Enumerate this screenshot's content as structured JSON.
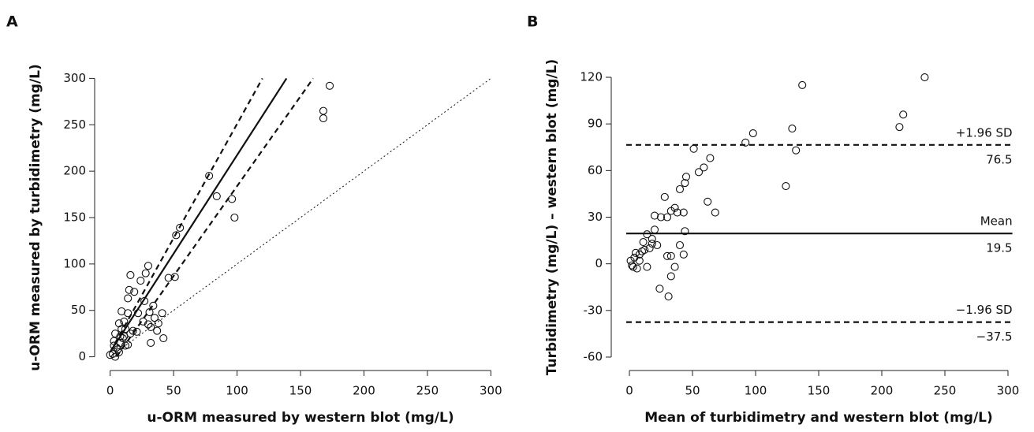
{
  "chart_data": [
    {
      "type": "scatter",
      "panel_label": "A",
      "x_label": "u-ORM measured by western blot (mg/L)",
      "y_label": "u-ORM measured by turbidimetry (mg/L)",
      "xlim": [
        -6,
        306
      ],
      "ylim": [
        -8,
        308
      ],
      "xticks": [
        0,
        50,
        100,
        150,
        200,
        250,
        300
      ],
      "yticks": [
        0,
        50,
        100,
        150,
        200,
        250,
        300
      ],
      "color": "#111111",
      "x": [
        173,
        168,
        168,
        78,
        84,
        96,
        98,
        55,
        52,
        51,
        46,
        30,
        28,
        16,
        24,
        19,
        15,
        14,
        27,
        34,
        31,
        22,
        14,
        9,
        7,
        11,
        12,
        18,
        16,
        21,
        30,
        32,
        38,
        37,
        41,
        42,
        32,
        14,
        10,
        8,
        4,
        3,
        5,
        7,
        2,
        0,
        4,
        12,
        9,
        3,
        6,
        11,
        8,
        35,
        26
      ],
      "y": [
        292,
        265,
        257,
        195,
        173,
        170,
        150,
        139,
        131,
        86,
        85,
        98,
        90,
        88,
        82,
        70,
        72,
        63,
        60,
        55,
        48,
        47,
        47,
        49,
        36,
        38,
        30,
        28,
        25,
        27,
        35,
        32,
        36,
        28,
        47,
        20,
        15,
        13,
        20,
        22,
        25,
        17,
        10,
        5,
        3,
        2,
        0,
        12,
        30,
        12,
        8,
        22,
        15,
        42,
        38
      ],
      "lines": [
        {
          "style": "solid",
          "x": [
            0,
            139
          ],
          "y": [
            5,
            300
          ]
        },
        {
          "style": "dashed",
          "x": [
            0,
            120
          ],
          "y": [
            5,
            300
          ]
        },
        {
          "style": "dashed",
          "x": [
            5,
            160
          ],
          "y": [
            0,
            300
          ]
        },
        {
          "style": "dotted",
          "x": [
            0,
            300
          ],
          "y": [
            0,
            300
          ]
        }
      ]
    },
    {
      "type": "scatter",
      "panel_label": "B",
      "x_label": "Mean of turbidimetry and western blot (mg/L)",
      "y_label": "Turbidimetry (mg/L) – western blot (mg/L)",
      "xlim": [
        -6,
        306
      ],
      "ylim": [
        -66,
        126
      ],
      "xticks": [
        0,
        50,
        100,
        150,
        200,
        250,
        300
      ],
      "yticks": [
        120,
        90,
        60,
        30,
        0,
        -30,
        -60
      ],
      "color": "#111111",
      "x": [
        234,
        137,
        217,
        214,
        129,
        98,
        92,
        132,
        51,
        64,
        59,
        55,
        45,
        44,
        40,
        124,
        62,
        68,
        43,
        28,
        36,
        33,
        38,
        30,
        25,
        20,
        20,
        18,
        22,
        14,
        11,
        16,
        12,
        8,
        4,
        1,
        2,
        3,
        6,
        8,
        14,
        40,
        43,
        44,
        30,
        33,
        36,
        33,
        24,
        31,
        10,
        5,
        18
      ],
      "y": [
        120,
        115,
        96,
        88,
        87,
        84,
        78,
        73,
        74,
        68,
        62,
        59,
        56,
        52,
        48,
        50,
        40,
        33,
        33,
        43,
        36,
        34,
        33,
        30,
        30,
        31,
        22,
        16,
        12,
        19,
        14,
        10,
        9,
        6,
        4,
        2,
        -1,
        -2,
        -3,
        2,
        -2,
        12,
        6,
        21,
        5,
        5,
        -2,
        -8,
        -16,
        -21,
        8,
        7,
        13
      ],
      "hlines": [
        {
          "name": "+1.96 SD",
          "value": 76.5,
          "value_label": "76.5",
          "style": "dashed"
        },
        {
          "name": "Mean",
          "value": 19.5,
          "value_label": "19.5",
          "style": "solid"
        },
        {
          "name": "−1.96 SD",
          "value": -37.5,
          "value_label": "−37.5",
          "style": "dashed"
        }
      ]
    }
  ]
}
